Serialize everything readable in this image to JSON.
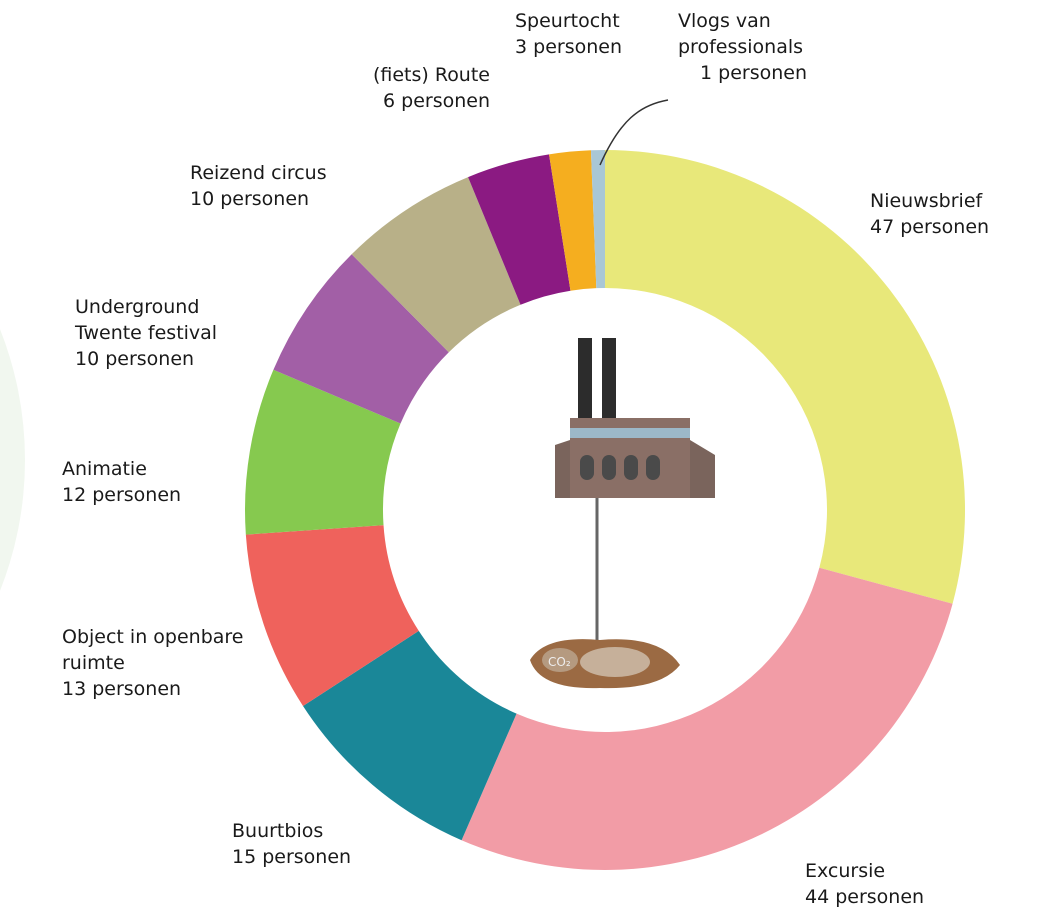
{
  "chart_data": {
    "type": "donut",
    "categories": [
      "Nieuwsbrief",
      "Excursie",
      "Buurtbios",
      "Object in openbare ruimte",
      "Animatie",
      "Underground Twente festival",
      "Reizend circus",
      "(fiets) Route",
      "Speurtocht",
      "Vlogs van professionals"
    ],
    "values": [
      47,
      44,
      15,
      13,
      12,
      10,
      10,
      6,
      3,
      1
    ],
    "value_labels": [
      "47 personen",
      "44 personen",
      "15 personen",
      "13 personen",
      "12 personen",
      "10 personen",
      "10 personen",
      "6 personen",
      "3 personen",
      "1 personen"
    ],
    "colors": [
      "#e8e87a",
      "#f29ca6",
      "#1a8798",
      "#ef625c",
      "#86c94f",
      "#a25fa6",
      "#b8b088",
      "#8b1a82",
      "#f5ae1f",
      "#a9c7d5"
    ]
  }
}
